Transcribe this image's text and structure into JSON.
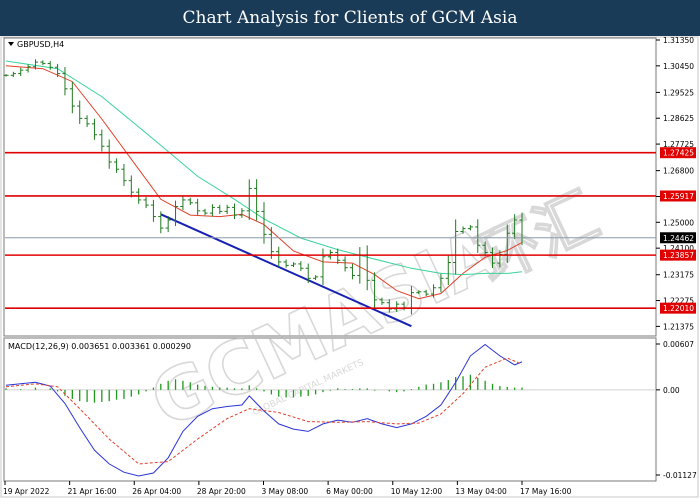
{
  "header": {
    "title": "Chart Analysis for Clients of GCM Asia"
  },
  "watermark": {
    "text": "GCMASIA",
    "chinese": "环汇",
    "subtext": "GLOBAL CAPITAL MARKETS"
  },
  "colors": {
    "price_bar": "#1f7a1f",
    "sma_fast": "#e0412b",
    "sma_slow": "#3ad39a",
    "trendline": "#1621b4",
    "level_line": "#e00000",
    "level_label_bg": "#e00000",
    "current_label_bg": "#000000",
    "macd_line": "#2a34d6",
    "signal_line": "#e0412b",
    "histogram": "#1f9a1f"
  },
  "chart_data": [
    {
      "type": "line",
      "title": "GBPUSD,H4",
      "symbol": "GBPUSD",
      "timeframe": "H4",
      "ylim": [
        1.2111,
        1.3135
      ],
      "x_tick_labels": [
        "19 Apr 2022",
        "21 Apr 16:00",
        "26 Apr 04:00",
        "28 Apr 20:00",
        "3 May 08:00",
        "6 May 00:00",
        "10 May 12:00",
        "13 May 04:00",
        "17 May 16:00"
      ],
      "y_tick_labels": [
        "1.31350",
        "1.30450",
        "1.29525",
        "1.28625",
        "1.27725",
        "1.26800",
        "1.25900",
        "1.25000",
        "1.24100",
        "1.23175",
        "1.22275",
        "1.21375"
      ],
      "series": [
        {
          "name": "",
          "kind": "price",
          "points": [
            [
              0,
              1.3012
            ],
            [
              2,
              1.3018
            ],
            [
              4,
              1.303
            ],
            [
              6,
              1.3042
            ],
            [
              8,
              1.3058
            ],
            [
              10,
              1.3053
            ],
            [
              12,
              1.304
            ],
            [
              14,
              1.3018
            ],
            [
              16,
              1.2965
            ],
            [
              18,
              1.2905
            ],
            [
              20,
              1.2862
            ],
            [
              22,
              1.2843
            ],
            [
              24,
              1.2805
            ],
            [
              26,
              1.2765
            ],
            [
              28,
              1.271
            ],
            [
              30,
              1.2685
            ],
            [
              32,
              1.2645
            ],
            [
              34,
              1.2605
            ],
            [
              36,
              1.2578
            ],
            [
              38,
              1.256
            ],
            [
              40,
              1.252
            ],
            [
              42,
              1.248
            ],
            [
              44,
              1.2508
            ],
            [
              46,
              1.2555
            ],
            [
              48,
              1.2578
            ],
            [
              50,
              1.2568
            ],
            [
              52,
              1.254
            ],
            [
              54,
              1.2532
            ],
            [
              56,
              1.2552
            ],
            [
              58,
              1.2538
            ],
            [
              60,
              1.2552
            ],
            [
              62,
              1.2525
            ],
            [
              64,
              1.254
            ],
            [
              66,
              1.2618
            ],
            [
              68,
              1.2538
            ],
            [
              70,
              1.2458
            ],
            [
              72,
              1.2398
            ],
            [
              74,
              1.2362
            ],
            [
              76,
              1.235
            ],
            [
              78,
              1.2355
            ],
            [
              80,
              1.234
            ],
            [
              82,
              1.2305
            ],
            [
              84,
              1.231
            ],
            [
              86,
              1.238
            ],
            [
              88,
              1.2395
            ],
            [
              90,
              1.2368
            ],
            [
              92,
              1.2342
            ],
            [
              94,
              1.2315
            ],
            [
              96,
              1.2385
            ],
            [
              98,
              1.2298
            ],
            [
              100,
              1.223
            ],
            [
              102,
              1.222
            ],
            [
              104,
              1.2198
            ],
            [
              106,
              1.2215
            ],
            [
              108,
              1.2202
            ],
            [
              110,
              1.2255
            ],
            [
              112,
              1.2258
            ],
            [
              114,
              1.225
            ],
            [
              116,
              1.2272
            ],
            [
              118,
              1.2305
            ],
            [
              120,
              1.236
            ],
            [
              122,
              1.2468
            ],
            [
              124,
              1.2478
            ],
            [
              126,
              1.2484
            ],
            [
              128,
              1.242
            ],
            [
              130,
              1.2395
            ],
            [
              132,
              1.2358
            ],
            [
              134,
              1.2388
            ],
            [
              136,
              1.2462
            ],
            [
              138,
              1.2508
            ],
            [
              140,
              1.2446
            ]
          ]
        },
        {
          "name": "",
          "kind": "sma_fast",
          "points": [
            [
              0,
              1.3045
            ],
            [
              10,
              1.3035
            ],
            [
              18,
              1.299
            ],
            [
              26,
              1.286
            ],
            [
              34,
              1.272
            ],
            [
              42,
              1.258
            ],
            [
              50,
              1.2525
            ],
            [
              58,
              1.252
            ],
            [
              64,
              1.2528
            ],
            [
              70,
              1.2492
            ],
            [
              78,
              1.24
            ],
            [
              86,
              1.2362
            ],
            [
              94,
              1.2358
            ],
            [
              100,
              1.2318
            ],
            [
              106,
              1.2262
            ],
            [
              112,
              1.2234
            ],
            [
              118,
              1.2252
            ],
            [
              124,
              1.2322
            ],
            [
              130,
              1.2378
            ],
            [
              136,
              1.2402
            ],
            [
              140,
              1.243
            ]
          ]
        },
        {
          "name": "",
          "kind": "sma_slow",
          "points": [
            [
              0,
              1.3062
            ],
            [
              14,
              1.3035
            ],
            [
              26,
              1.2938
            ],
            [
              40,
              1.279
            ],
            [
              52,
              1.266
            ],
            [
              62,
              1.258
            ],
            [
              70,
              1.2512
            ],
            [
              80,
              1.2445
            ],
            [
              90,
              1.2405
            ],
            [
              100,
              1.2372
            ],
            [
              110,
              1.234
            ],
            [
              118,
              1.2322
            ],
            [
              124,
              1.2318
            ],
            [
              130,
              1.2322
            ],
            [
              136,
              1.2322
            ],
            [
              140,
              1.2328
            ]
          ]
        },
        {
          "name": "",
          "kind": "trendline",
          "points": [
            [
              42,
              1.2528
            ],
            [
              110,
              1.2138
            ]
          ]
        }
      ],
      "levels": [
        {
          "value": 1.27425,
          "label": "1.27425",
          "style": "solid-red"
        },
        {
          "value": 1.25917,
          "label": "1.25917",
          "style": "solid-red"
        },
        {
          "value": 1.24462,
          "label": "1.24462",
          "style": "current-price"
        },
        {
          "value": 1.23857,
          "label": "1.23857",
          "style": "solid-red"
        },
        {
          "value": 1.2201,
          "label": "1.22010",
          "style": "solid-red"
        }
      ]
    },
    {
      "type": "line",
      "title": "MACD(12,26,9) 0.003651 0.003361 0.000290",
      "ylim": [
        -0.0118,
        0.0066
      ],
      "y_tick_labels": [
        "0.00607",
        "0.00",
        "-0.01127"
      ],
      "series": [
        {
          "name": "",
          "kind": "macd",
          "points": [
            [
              0,
              0.0006
            ],
            [
              4,
              0.0008
            ],
            [
              8,
              0.001
            ],
            [
              12,
              0.0005
            ],
            [
              16,
              -0.0018
            ],
            [
              20,
              -0.005
            ],
            [
              24,
              -0.008
            ],
            [
              28,
              -0.0098
            ],
            [
              32,
              -0.0109
            ],
            [
              36,
              -0.0114
            ],
            [
              40,
              -0.011
            ],
            [
              44,
              -0.009
            ],
            [
              48,
              -0.0055
            ],
            [
              52,
              -0.0035
            ],
            [
              56,
              -0.0025
            ],
            [
              60,
              -0.0022
            ],
            [
              64,
              -0.002
            ],
            [
              66,
              -0.0008
            ],
            [
              70,
              -0.0028
            ],
            [
              74,
              -0.0045
            ],
            [
              78,
              -0.0052
            ],
            [
              82,
              -0.0055
            ],
            [
              86,
              -0.0045
            ],
            [
              90,
              -0.004
            ],
            [
              94,
              -0.0043
            ],
            [
              98,
              -0.0038
            ],
            [
              102,
              -0.0045
            ],
            [
              106,
              -0.005
            ],
            [
              110,
              -0.0045
            ],
            [
              114,
              -0.0035
            ],
            [
              118,
              -0.002
            ],
            [
              122,
              0.001
            ],
            [
              126,
              0.0045
            ],
            [
              130,
              0.006
            ],
            [
              134,
              0.0045
            ],
            [
              138,
              0.0033
            ],
            [
              140,
              0.0037
            ]
          ]
        },
        {
          "name": "",
          "kind": "signal",
          "points": [
            [
              0,
              0.0004
            ],
            [
              8,
              0.0008
            ],
            [
              14,
              0.0004
            ],
            [
              20,
              -0.0025
            ],
            [
              28,
              -0.0065
            ],
            [
              36,
              -0.0098
            ],
            [
              44,
              -0.0095
            ],
            [
              52,
              -0.0065
            ],
            [
              60,
              -0.0038
            ],
            [
              66,
              -0.0025
            ],
            [
              74,
              -0.003
            ],
            [
              82,
              -0.0042
            ],
            [
              90,
              -0.0043
            ],
            [
              98,
              -0.0042
            ],
            [
              106,
              -0.0045
            ],
            [
              112,
              -0.0044
            ],
            [
              118,
              -0.0032
            ],
            [
              124,
              -0.0005
            ],
            [
              130,
              0.003
            ],
            [
              136,
              0.0042
            ],
            [
              140,
              0.0034
            ]
          ]
        },
        {
          "name": "",
          "kind": "histogram",
          "points": [
            [
              0,
              0.0002
            ],
            [
              4,
              0.0001
            ],
            [
              8,
              0.0003
            ],
            [
              12,
              0.0002
            ],
            [
              14,
              -0.0002
            ],
            [
              16,
              -0.0008
            ],
            [
              18,
              -0.0012
            ],
            [
              20,
              -0.0015
            ],
            [
              22,
              -0.0016
            ],
            [
              24,
              -0.0017
            ],
            [
              26,
              -0.0016
            ],
            [
              28,
              -0.0015
            ],
            [
              30,
              -0.0013
            ],
            [
              32,
              -0.0012
            ],
            [
              34,
              -0.0009
            ],
            [
              36,
              -0.0006
            ],
            [
              38,
              -0.0002
            ],
            [
              40,
              0.0003
            ],
            [
              42,
              0.0008
            ],
            [
              44,
              0.0012
            ],
            [
              46,
              0.0014
            ],
            [
              48,
              0.0012
            ],
            [
              50,
              0.001
            ],
            [
              52,
              0.0007
            ],
            [
              54,
              0.0005
            ],
            [
              56,
              0.0004
            ],
            [
              58,
              0.0003
            ],
            [
              60,
              0.0003
            ],
            [
              62,
              0.0002
            ],
            [
              64,
              0.0002
            ],
            [
              66,
              0.0006
            ],
            [
              68,
              0.0002
            ],
            [
              70,
              -0.0002
            ],
            [
              72,
              -0.0006
            ],
            [
              74,
              -0.0009
            ],
            [
              76,
              -0.001
            ],
            [
              78,
              -0.001
            ],
            [
              80,
              -0.0009
            ],
            [
              82,
              -0.0008
            ],
            [
              84,
              -0.0006
            ],
            [
              86,
              -0.0003
            ],
            [
              88,
              -0.0001
            ],
            [
              90,
              0.0002
            ],
            [
              92,
              0.0001
            ],
            [
              94,
              0.0001
            ],
            [
              96,
              0.0002
            ],
            [
              98,
              0.0002
            ],
            [
              100,
              -0.0001
            ],
            [
              102,
              0.0
            ],
            [
              104,
              -0.0002
            ],
            [
              106,
              -0.0003
            ],
            [
              108,
              -0.0002
            ],
            [
              110,
              0.0001
            ],
            [
              112,
              0.0004
            ],
            [
              114,
              0.0007
            ],
            [
              116,
              0.0008
            ],
            [
              118,
              0.001
            ],
            [
              120,
              0.0013
            ],
            [
              122,
              0.0017
            ],
            [
              124,
              0.0018
            ],
            [
              126,
              0.002
            ],
            [
              128,
              0.0016
            ],
            [
              130,
              0.0012
            ],
            [
              132,
              0.0008
            ],
            [
              134,
              0.0005
            ],
            [
              136,
              0.0004
            ],
            [
              138,
              0.0003
            ],
            [
              140,
              0.0003
            ]
          ]
        }
      ]
    }
  ]
}
